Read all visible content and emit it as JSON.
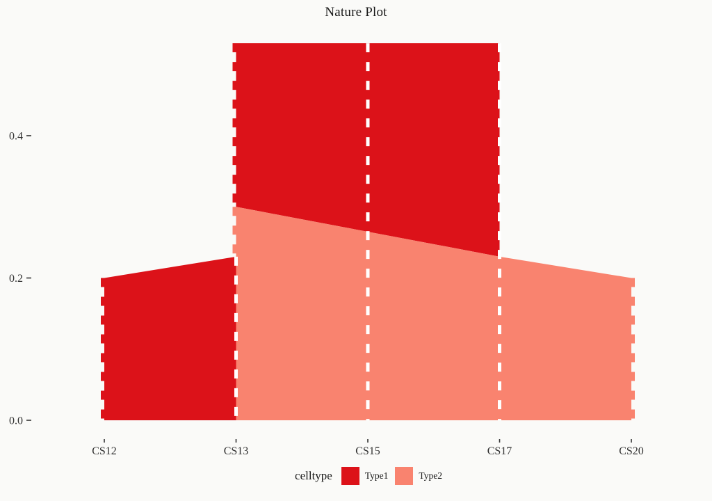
{
  "chart_data": {
    "type": "area",
    "title": "Nature Plot",
    "xlabel": "",
    "ylabel": "",
    "grid": "off",
    "categories": [
      "CS12",
      "CS13",
      "CS15",
      "CS17",
      "CS20"
    ],
    "y_ticks": [
      0.0,
      0.2,
      0.4
    ],
    "ylim": [
      0,
      0.56
    ],
    "legend": {
      "title": "celltype",
      "position": "bottom",
      "entries": [
        {
          "label": "Type1",
          "color": "#DC1219"
        },
        {
          "label": "Type2",
          "color": "#F9836F"
        }
      ]
    },
    "series": [
      {
        "name": "Type1",
        "color": "#DC1219",
        "polygons": [
          {
            "x": [
              "CS12",
              "CS13",
              "CS13",
              "CS12"
            ],
            "y": [
              0.2,
              0.23,
              0,
              0
            ]
          },
          {
            "x": [
              "CS13",
              "CS17",
              "CS17",
              "CS13"
            ],
            "y": [
              0.53,
              0.53,
              0.23,
              0.3
            ]
          }
        ]
      },
      {
        "name": "Type2",
        "color": "#F9836F",
        "polygons": [
          {
            "x": [
              "CS13",
              "CS15",
              "CS17",
              "CS20",
              "CS20",
              "CS13"
            ],
            "y": [
              0.3,
              0.265,
              0.23,
              0.2,
              0,
              0
            ]
          }
        ]
      }
    ],
    "white_dashed_lines": [
      {
        "x": "CS13",
        "y_from": 0.23,
        "y_to": 0
      },
      {
        "x": "CS15",
        "y_from": 0.53,
        "y_to": 0
      },
      {
        "x": "CS17",
        "y_from": 0.53,
        "y_to": 0
      }
    ],
    "edge_dashes": [
      {
        "x": "CS12",
        "side": "left",
        "series": "Type1",
        "y_from": 0,
        "y_to": 0.2
      },
      {
        "x": "CS13",
        "side": "left",
        "series": "Type1",
        "y_from": 0.3,
        "y_to": 0.53
      },
      {
        "x": "CS13",
        "side": "left",
        "series": "Type2",
        "y_from": 0.23,
        "y_to": 0.3
      },
      {
        "x": "CS20",
        "side": "right",
        "series": "Type2",
        "y_from": 0,
        "y_to": 0.2
      }
    ],
    "dash_pattern": {
      "width": 5,
      "on": 13,
      "off": 14
    },
    "text_color": "#303030"
  }
}
